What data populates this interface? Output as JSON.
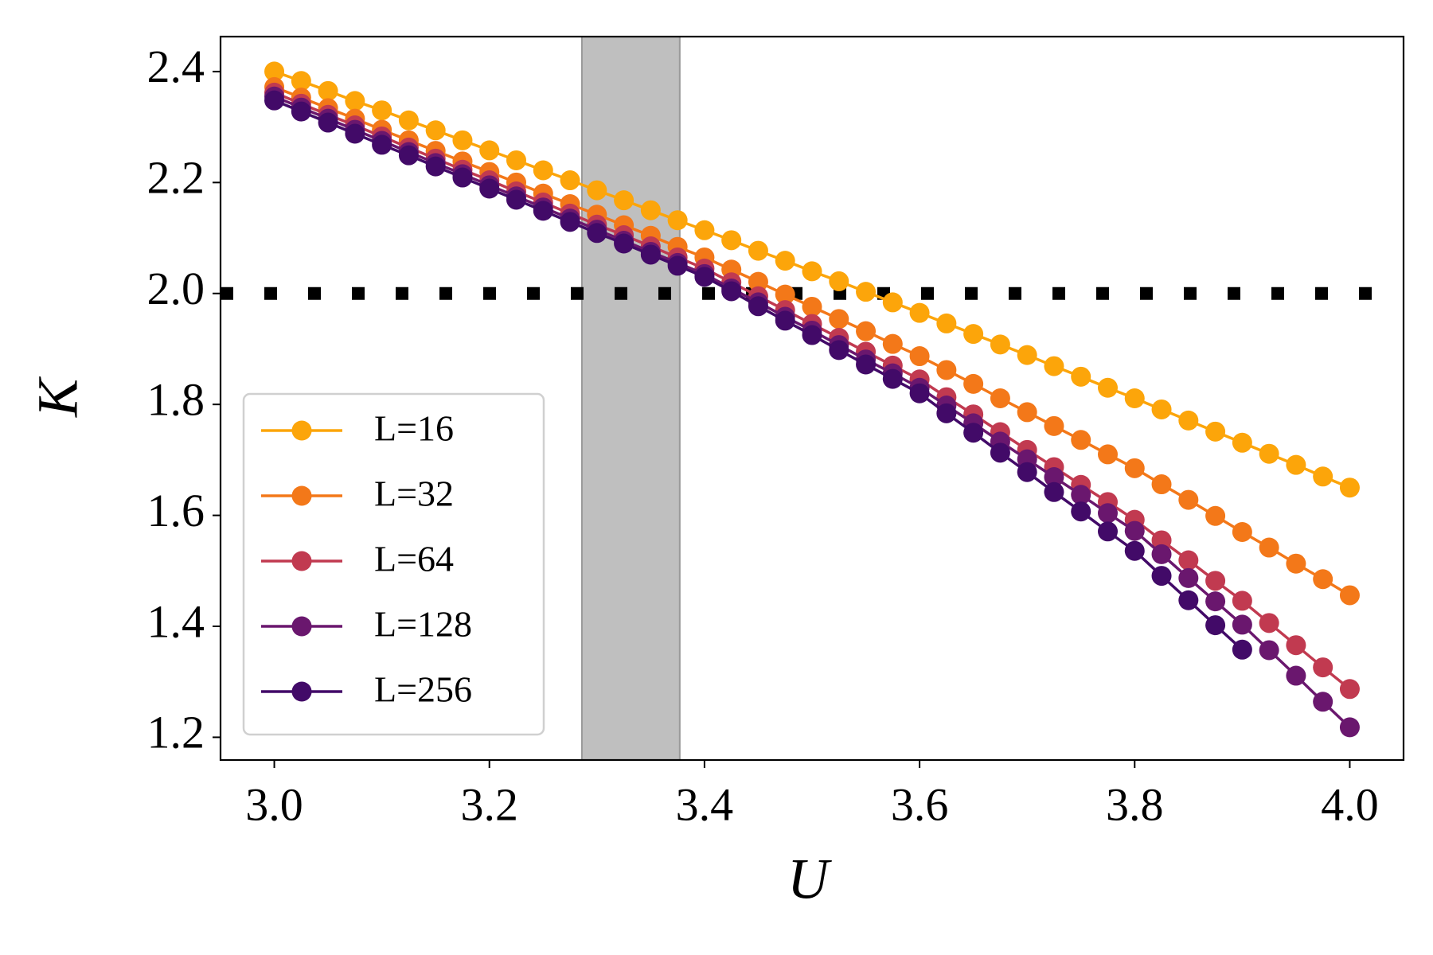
{
  "chart_data": {
    "type": "line",
    "xlabel": "U",
    "ylabel": "K",
    "x": [
      3.0,
      3.025,
      3.05,
      3.075,
      3.1,
      3.125,
      3.15,
      3.175,
      3.2,
      3.225,
      3.25,
      3.275,
      3.3,
      3.325,
      3.35,
      3.375,
      3.4,
      3.425,
      3.45,
      3.475,
      3.5,
      3.525,
      3.55,
      3.575,
      3.6,
      3.625,
      3.65,
      3.675,
      3.7,
      3.725,
      3.75,
      3.775,
      3.8,
      3.825,
      3.85,
      3.875,
      3.9,
      3.925,
      3.95,
      3.975,
      4.0
    ],
    "series": [
      {
        "name": "L=16",
        "color": "#fca50a",
        "values": [
          2.4,
          2.383,
          2.365,
          2.347,
          2.33,
          2.312,
          2.294,
          2.276,
          2.258,
          2.24,
          2.222,
          2.204,
          2.186,
          2.168,
          2.15,
          2.132,
          2.114,
          2.096,
          2.077,
          2.059,
          2.04,
          2.022,
          2.003,
          1.984,
          1.965,
          1.946,
          1.927,
          1.908,
          1.889,
          1.869,
          1.85,
          1.83,
          1.811,
          1.791,
          1.771,
          1.751,
          1.731,
          1.711,
          1.691,
          1.67,
          1.65
        ]
      },
      {
        "name": "L=32",
        "color": "#f37819",
        "values": [
          2.372,
          2.353,
          2.334,
          2.315,
          2.295,
          2.276,
          2.257,
          2.238,
          2.219,
          2.2,
          2.18,
          2.161,
          2.142,
          2.123,
          2.104,
          2.084,
          2.065,
          2.043,
          2.021,
          1.998,
          1.976,
          1.954,
          1.932,
          1.909,
          1.887,
          1.862,
          1.837,
          1.811,
          1.786,
          1.761,
          1.736,
          1.71,
          1.685,
          1.656,
          1.628,
          1.599,
          1.57,
          1.542,
          1.513,
          1.485,
          1.456
        ]
      },
      {
        "name": "L=64",
        "color": "#c13a50",
        "values": [
          2.362,
          2.342,
          2.322,
          2.303,
          2.283,
          2.263,
          2.243,
          2.223,
          2.204,
          2.184,
          2.164,
          2.144,
          2.124,
          2.105,
          2.085,
          2.065,
          2.045,
          2.02,
          1.995,
          1.97,
          1.945,
          1.92,
          1.895,
          1.87,
          1.845,
          1.813,
          1.782,
          1.75,
          1.718,
          1.687,
          1.655,
          1.624,
          1.592,
          1.555,
          1.519,
          1.482,
          1.446,
          1.406,
          1.366,
          1.326,
          1.287
        ]
      },
      {
        "name": "L=128",
        "color": "#6a176e",
        "values": [
          2.355,
          2.335,
          2.315,
          2.295,
          2.275,
          2.255,
          2.235,
          2.215,
          2.195,
          2.175,
          2.155,
          2.135,
          2.115,
          2.095,
          2.075,
          2.055,
          2.035,
          2.009,
          1.984,
          1.958,
          1.933,
          1.907,
          1.881,
          1.856,
          1.83,
          1.798,
          1.766,
          1.733,
          1.701,
          1.669,
          1.637,
          1.604,
          1.572,
          1.53,
          1.487,
          1.445,
          1.403,
          1.357,
          1.311,
          1.264,
          1.218
        ]
      },
      {
        "name": "L=256",
        "color": "#420a68",
        "values": [
          2.348,
          2.328,
          2.308,
          2.288,
          2.268,
          2.249,
          2.229,
          2.209,
          2.189,
          2.169,
          2.149,
          2.129,
          2.109,
          2.09,
          2.07,
          2.05,
          2.03,
          2.004,
          1.977,
          1.951,
          1.925,
          1.898,
          1.872,
          1.846,
          1.82,
          1.784,
          1.749,
          1.713,
          1.678,
          1.642,
          1.607,
          1.571,
          1.536,
          1.491,
          1.447,
          1.402,
          1.358,
          null,
          null,
          null,
          null
        ]
      }
    ],
    "xlim": [
      2.95,
      4.05
    ],
    "xticks": [
      {
        "value": 3,
        "label": "3.0"
      },
      3.2,
      3.4,
      3.6,
      3.8,
      {
        "value": 4,
        "label": "4.0"
      }
    ],
    "ylim": [
      1.159,
      2.463
    ],
    "yticks": [
      1.2,
      1.4,
      1.6,
      1.8,
      {
        "value": 2,
        "label": "2.0"
      },
      2.2,
      2.4
    ],
    "hline": {
      "value": 2.0,
      "color": "#000000"
    },
    "span": {
      "range": [
        3.286,
        3.377
      ],
      "color": "#bfbfbf"
    },
    "grid": false,
    "legend": "lower left"
  }
}
